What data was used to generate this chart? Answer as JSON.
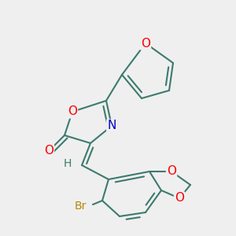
{
  "background_color": "#efefef",
  "bond_color": "#3d7a6e",
  "bond_width": 1.5,
  "atom_colors": {
    "O": "#ff0000",
    "N": "#0000cc",
    "Br": "#b8860b",
    "C": "#3d7a6e",
    "H": "#3d7a6e"
  },
  "figsize": [
    3.0,
    3.0
  ],
  "dpi": 100
}
